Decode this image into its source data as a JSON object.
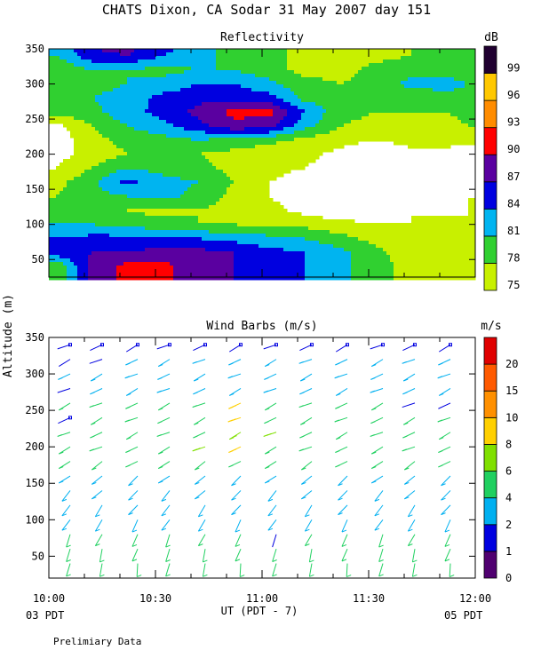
{
  "title": "CHATS Dixon, CA  Sodar  31 May 2007  day 151",
  "ylabel": "Altitude (m)",
  "xlabel": "UT  (PDT - 7)",
  "footnote": "Prelimiary Data",
  "xticks": [
    {
      "t": 0,
      "label": "10:00"
    },
    {
      "t": 30,
      "label": "10:30"
    },
    {
      "t": 60,
      "label": "11:00"
    },
    {
      "t": 90,
      "label": "11:30"
    },
    {
      "t": 120,
      "label": "12:00"
    }
  ],
  "sublabels": {
    "left": "03 PDT",
    "right": "05 PDT"
  },
  "chart_data": [
    {
      "type": "heatmap",
      "title": "Reflectivity",
      "units": "dB",
      "xlim": [
        0,
        120
      ],
      "ylim": [
        25,
        350
      ],
      "yticks": [
        50,
        100,
        150,
        200,
        250,
        300,
        350
      ],
      "levels": [
        75,
        78,
        81,
        84,
        87,
        90,
        93,
        96,
        99
      ],
      "level_colors": [
        "#c8f000",
        "#30d030",
        "#00b4f0",
        "#0000e0",
        "#5a00a0",
        "#ff0000",
        "#ff8c00",
        "#ffc800",
        "#200030"
      ],
      "x": [
        2,
        12,
        22,
        32,
        42,
        52,
        62,
        72,
        82,
        92,
        102,
        112,
        118
      ],
      "y": [
        40,
        60,
        80,
        100,
        120,
        140,
        160,
        180,
        200,
        220,
        240,
        260,
        280,
        300,
        320,
        340,
        350
      ],
      "z": [
        [
          78,
          88,
          91,
          91,
          88,
          87,
          86,
          84,
          82,
          79,
          77,
          76,
          76
        ],
        [
          86,
          87,
          87,
          88,
          88,
          87,
          85,
          84,
          82,
          79,
          76,
          75,
          76
        ],
        [
          84,
          85,
          85,
          85,
          84,
          83,
          82,
          81,
          79,
          77,
          75,
          76,
          77
        ],
        [
          81,
          81,
          80,
          79,
          78,
          78,
          77,
          77,
          76,
          75,
          75,
          76,
          75
        ],
        [
          79,
          79,
          78,
          77,
          78,
          77,
          76,
          74,
          73,
          73,
          75,
          74,
          75
        ],
        [
          78,
          80,
          81,
          82,
          80,
          77,
          75,
          73,
          72,
          72,
          72,
          74,
          75
        ],
        [
          77,
          80,
          85,
          82,
          81,
          78,
          75,
          73,
          72,
          72,
          72,
          73,
          74
        ],
        [
          75,
          78,
          81,
          80,
          79,
          77,
          76,
          75,
          73,
          72,
          72,
          73,
          73
        ],
        [
          74,
          76,
          78,
          78,
          78,
          77,
          76,
          76,
          74,
          72,
          74,
          74,
          72
        ],
        [
          73,
          77,
          79,
          80,
          81,
          80,
          79,
          77,
          76,
          75,
          76,
          76,
          77
        ],
        [
          74,
          78,
          81,
          83,
          86,
          89,
          88,
          82,
          78,
          77,
          77,
          77,
          78
        ],
        [
          79,
          80,
          83,
          85,
          88,
          91,
          91,
          84,
          79,
          78,
          78,
          78,
          79
        ],
        [
          80,
          81,
          82,
          85,
          86,
          86,
          85,
          80,
          79,
          78,
          79,
          80,
          80
        ],
        [
          80,
          80,
          81,
          82,
          84,
          84,
          82,
          79,
          78,
          79,
          82,
          82,
          81
        ],
        [
          78,
          81,
          81,
          80,
          81,
          81,
          79,
          77,
          77,
          79,
          80,
          80,
          79
        ],
        [
          81,
          86,
          87,
          84,
          82,
          80,
          79,
          77,
          76,
          77,
          78,
          78,
          78
        ],
        [
          82,
          87,
          88,
          85,
          82,
          80,
          79,
          77,
          76,
          77,
          78,
          78,
          78
        ]
      ]
    },
    {
      "type": "scatter",
      "title": "Wind Barbs (m/s)",
      "units": "m/s",
      "xlim": [
        0,
        120
      ],
      "ylim": [
        20,
        350
      ],
      "yticks": [
        50,
        100,
        150,
        200,
        250,
        300,
        350
      ],
      "speed_levels": [
        0,
        1,
        2,
        4,
        6,
        8,
        10,
        15,
        20
      ],
      "speed_colors": [
        "#500070",
        "#0000e0",
        "#00b0f0",
        "#20d060",
        "#80e000",
        "#ffd000",
        "#ff9000",
        "#ff5a00",
        "#e00000"
      ],
      "times": [
        6,
        15,
        25,
        34,
        44,
        54,
        64,
        74,
        84,
        94,
        103,
        113
      ],
      "altitudes": [
        40,
        60,
        80,
        100,
        120,
        140,
        160,
        180,
        200,
        220,
        240,
        260,
        280,
        300,
        320,
        340
      ],
      "speed_profile": [
        4,
        4,
        4,
        3,
        3,
        3,
        3,
        4,
        4,
        4,
        4,
        4,
        3,
        3,
        2,
        1
      ],
      "fast_barbs": [
        {
          "t": 54,
          "alt": 200,
          "speed": 8
        },
        {
          "t": 54,
          "alt": 220,
          "speed": 7
        },
        {
          "t": 54,
          "alt": 240,
          "speed": 9
        },
        {
          "t": 54,
          "alt": 260,
          "speed": 9
        },
        {
          "t": 64,
          "alt": 220,
          "speed": 7
        },
        {
          "t": 94,
          "alt": 190,
          "speed": 11
        },
        {
          "t": 44,
          "alt": 200,
          "speed": 7
        }
      ],
      "slow_barbs": [
        {
          "t": 6,
          "alt": 320,
          "speed": 1
        },
        {
          "t": 15,
          "alt": 320,
          "speed": 1
        },
        {
          "t": 34,
          "alt": 340,
          "speed": 1
        },
        {
          "t": 6,
          "alt": 240,
          "speed": 1
        },
        {
          "t": 6,
          "alt": 280,
          "speed": 1
        },
        {
          "t": 64,
          "alt": 80,
          "speed": 1
        },
        {
          "t": 103,
          "alt": 260,
          "speed": 1
        },
        {
          "t": 113,
          "alt": 260,
          "speed": 1
        }
      ]
    }
  ]
}
